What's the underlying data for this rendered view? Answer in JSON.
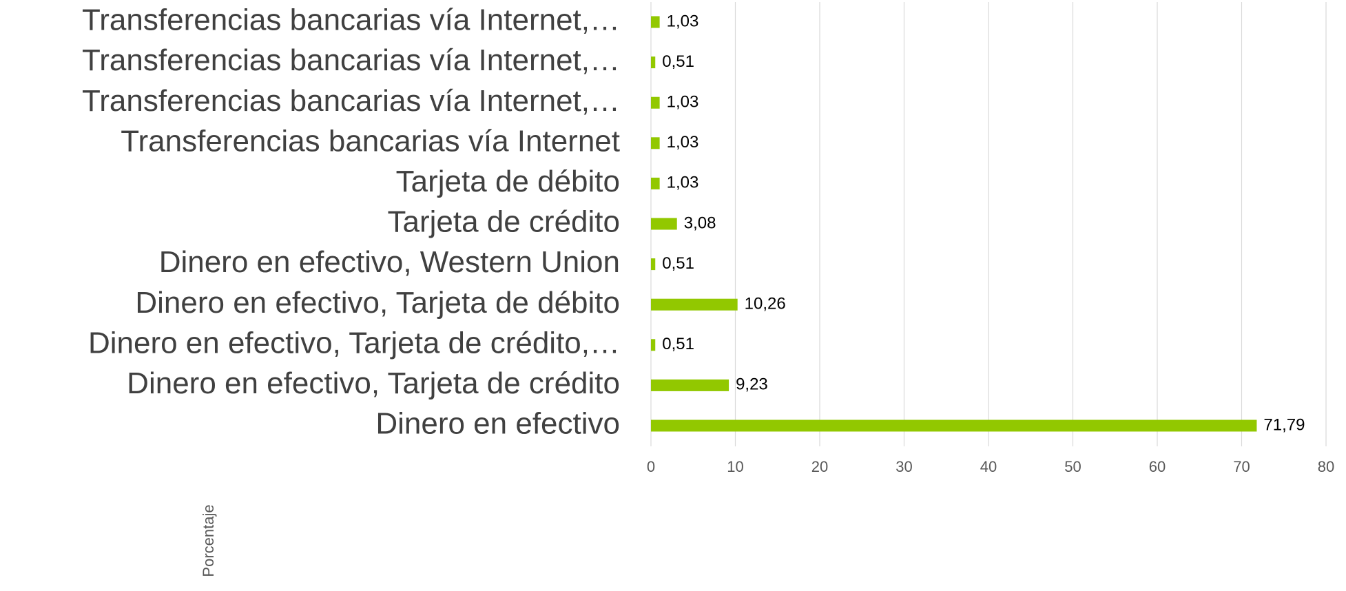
{
  "chart_data": {
    "type": "barh",
    "categories": [
      "Transferencias bancarias vía Internet,…",
      "Transferencias bancarias vía Internet,…",
      "Transferencias bancarias vía Internet,…",
      "Transferencias bancarias vía Internet",
      "Tarjeta de débito",
      "Tarjeta de crédito",
      "Dinero en efectivo, Western Union",
      "Dinero en efectivo, Tarjeta de débito",
      "Dinero en efectivo, Tarjeta de crédito,…",
      "Dinero en efectivo, Tarjeta de crédito",
      "Dinero en efectivo"
    ],
    "values": [
      1.03,
      0.51,
      1.03,
      1.03,
      1.03,
      3.08,
      0.51,
      10.26,
      0.51,
      9.23,
      71.79
    ],
    "value_labels": [
      "1,03",
      "0,51",
      "1,03",
      "1,03",
      "1,03",
      "3,08",
      "0,51",
      "10,26",
      "0,51",
      "9,23",
      "71,79"
    ],
    "color": "#92c800",
    "xlabel": "Porcentaje",
    "xlim": [
      0,
      80
    ],
    "xticks": [
      0,
      10,
      20,
      30,
      40,
      50,
      60,
      70,
      80
    ],
    "grid": true
  }
}
